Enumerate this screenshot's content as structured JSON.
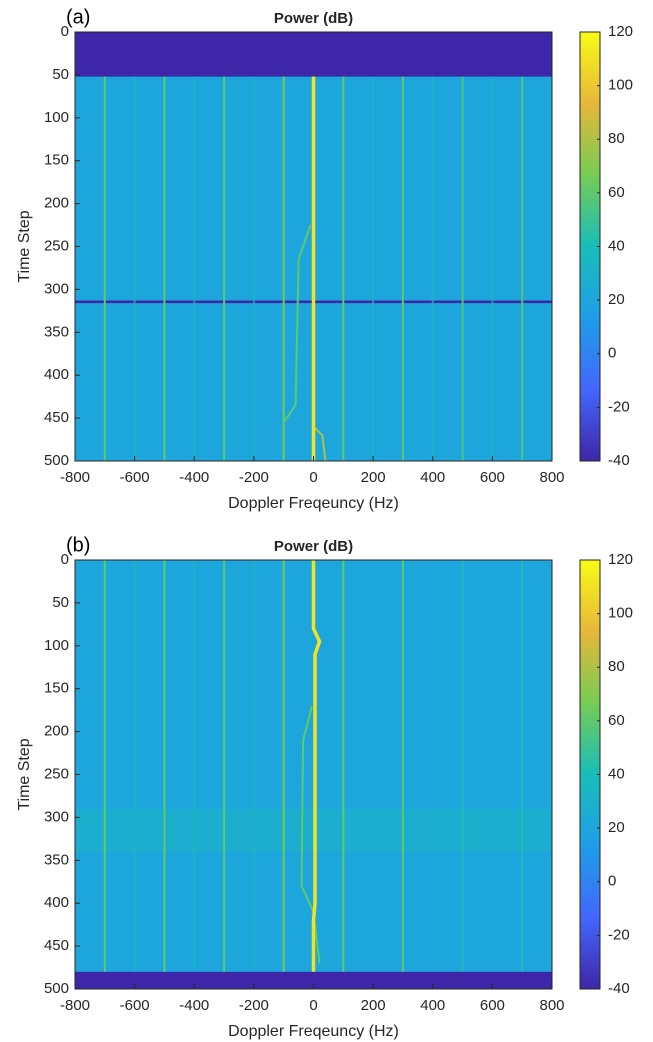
{
  "chart_data": [
    {
      "type": "heatmap",
      "panel_label": "(a)",
      "title": "Power (dB)",
      "xlabel": "Doppler Freqeuncy (Hz)",
      "ylabel": "Time Step",
      "xlim": [
        -800,
        800
      ],
      "xticks": [
        -800,
        -600,
        -400,
        -200,
        0,
        200,
        400,
        600,
        800
      ],
      "ylim": [
        0,
        500
      ],
      "yticks": [
        0,
        50,
        100,
        150,
        200,
        250,
        300,
        350,
        400,
        450,
        500
      ],
      "y_reversed": true,
      "clim": [
        -40,
        120
      ],
      "cticks": [
        -40,
        -20,
        0,
        20,
        40,
        60,
        80,
        100,
        120
      ],
      "colormap": [
        "#3e26a8",
        "#4367fd",
        "#1f9ee8",
        "#17beb8",
        "#76cc54",
        "#e6b73a",
        "#f9fb15"
      ],
      "background": 20,
      "bands": [
        {
          "t": [
            0,
            52
          ],
          "value": -40
        },
        {
          "t": [
            313,
            316
          ],
          "value": -40
        }
      ],
      "lines": [
        {
          "f": [
            -700,
            -700
          ],
          "t": [
            52,
            500
          ],
          "value": 60
        },
        {
          "f": [
            -500,
            -500
          ],
          "t": [
            52,
            500
          ],
          "value": 60
        },
        {
          "f": [
            -300,
            -300
          ],
          "t": [
            52,
            500
          ],
          "value": 60
        },
        {
          "f": [
            -100,
            -100
          ],
          "t": [
            52,
            500
          ],
          "value": 65
        },
        {
          "f": [
            100,
            100
          ],
          "t": [
            52,
            500
          ],
          "value": 60
        },
        {
          "f": [
            300,
            300
          ],
          "t": [
            52,
            500
          ],
          "value": 60
        },
        {
          "f": [
            500,
            500
          ],
          "t": [
            52,
            500
          ],
          "value": 55
        },
        {
          "f": [
            700,
            700
          ],
          "t": [
            52,
            500
          ],
          "value": 55
        },
        {
          "f": [
            -600,
            -600
          ],
          "t": [
            52,
            500
          ],
          "value": 35
        },
        {
          "f": [
            -400,
            -400
          ],
          "t": [
            52,
            500
          ],
          "value": 35
        },
        {
          "f": [
            -200,
            -200
          ],
          "t": [
            52,
            500
          ],
          "value": 35
        },
        {
          "f": [
            200,
            200
          ],
          "t": [
            52,
            500
          ],
          "value": 35
        },
        {
          "f": [
            400,
            400
          ],
          "t": [
            52,
            500
          ],
          "value": 35
        },
        {
          "f": [
            600,
            600
          ],
          "t": [
            52,
            500
          ],
          "value": 35
        },
        {
          "f": [
            -10,
            -40,
            -50,
            -60,
            -100
          ],
          "t": [
            225,
            255,
            265,
            435,
            455
          ],
          "value": 60
        },
        {
          "f": [
            0,
            30,
            40
          ],
          "t": [
            460,
            470,
            500
          ],
          "value": 80
        },
        {
          "f": [
            0,
            0
          ],
          "t": [
            52,
            500
          ],
          "value": 110
        }
      ]
    },
    {
      "type": "heatmap",
      "panel_label": "(b)",
      "title": "Power (dB)",
      "xlabel": "Doppler Freqeuncy (Hz)",
      "ylabel": "Time Step",
      "xlim": [
        -800,
        800
      ],
      "xticks": [
        -800,
        -600,
        -400,
        -200,
        0,
        200,
        400,
        600,
        800
      ],
      "ylim": [
        0,
        500
      ],
      "yticks": [
        0,
        50,
        100,
        150,
        200,
        250,
        300,
        350,
        400,
        450,
        500
      ],
      "y_reversed": true,
      "clim": [
        -40,
        120
      ],
      "cticks": [
        -40,
        -20,
        0,
        20,
        40,
        60,
        80,
        100,
        120
      ],
      "colormap": [
        "#3e26a8",
        "#4367fd",
        "#1f9ee8",
        "#17beb8",
        "#76cc54",
        "#e6b73a",
        "#f9fb15"
      ],
      "background": 20,
      "bands": [
        {
          "t": [
            290,
            340
          ],
          "value": 27
        },
        {
          "t": [
            480,
            500
          ],
          "value": -40
        }
      ],
      "lines": [
        {
          "f": [
            -700,
            -700
          ],
          "t": [
            0,
            480
          ],
          "value": 60
        },
        {
          "f": [
            -500,
            -500
          ],
          "t": [
            0,
            480
          ],
          "value": 60
        },
        {
          "f": [
            -300,
            -300
          ],
          "t": [
            0,
            480
          ],
          "value": 60
        },
        {
          "f": [
            -100,
            -100
          ],
          "t": [
            0,
            480
          ],
          "value": 65
        },
        {
          "f": [
            100,
            100
          ],
          "t": [
            0,
            480
          ],
          "value": 60
        },
        {
          "f": [
            300,
            300
          ],
          "t": [
            0,
            480
          ],
          "value": 60
        },
        {
          "f": [
            500,
            500
          ],
          "t": [
            0,
            480
          ],
          "value": 45
        },
        {
          "f": [
            700,
            700
          ],
          "t": [
            0,
            480
          ],
          "value": 45
        },
        {
          "f": [
            -600,
            -600
          ],
          "t": [
            0,
            480
          ],
          "value": 35
        },
        {
          "f": [
            -400,
            -400
          ],
          "t": [
            0,
            480
          ],
          "value": 35
        },
        {
          "f": [
            -200,
            -200
          ],
          "t": [
            0,
            480
          ],
          "value": 35
        },
        {
          "f": [
            -5,
            -35,
            -40,
            0,
            20
          ],
          "t": [
            170,
            210,
            380,
            410,
            470
          ],
          "value": 60
        },
        {
          "f": [
            0,
            0,
            20,
            5,
            5,
            0,
            0
          ],
          "t": [
            0,
            80,
            95,
            110,
            400,
            420,
            480
          ],
          "value": 110
        }
      ]
    }
  ]
}
